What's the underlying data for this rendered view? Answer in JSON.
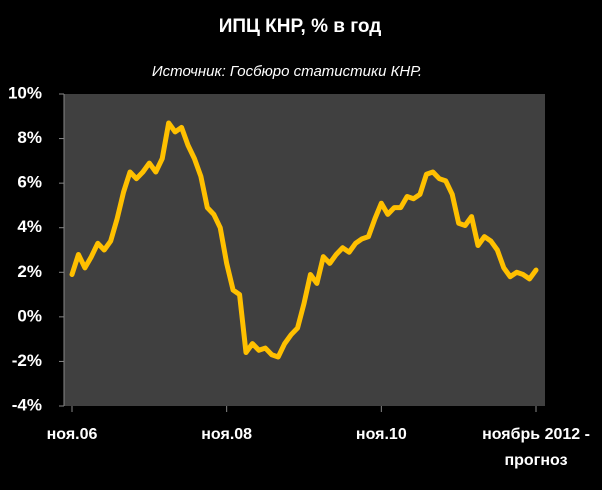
{
  "chart_data": {
    "type": "line",
    "title": "ИПЦ КНР, % в год",
    "subtitle": "Источник: Госбюро статистики КНР.",
    "categories": [
      "ноя.06",
      null,
      null,
      null,
      null,
      null,
      null,
      null,
      null,
      null,
      null,
      null,
      null,
      null,
      null,
      null,
      null,
      null,
      null,
      null,
      null,
      null,
      null,
      null,
      "ноя.08",
      null,
      null,
      null,
      null,
      null,
      null,
      null,
      null,
      null,
      null,
      null,
      null,
      null,
      null,
      null,
      null,
      null,
      null,
      null,
      null,
      null,
      null,
      null,
      "ноя.10",
      null,
      null,
      null,
      null,
      null,
      null,
      null,
      null,
      null,
      null,
      null,
      null,
      null,
      null,
      null,
      null,
      null,
      null,
      null,
      null,
      null,
      null,
      null,
      "ноябрь 2012 - прогноз"
    ],
    "values": [
      1.9,
      2.8,
      2.2,
      2.7,
      3.3,
      3.0,
      3.4,
      4.4,
      5.6,
      6.5,
      6.2,
      6.5,
      6.9,
      6.5,
      7.1,
      8.7,
      8.3,
      8.5,
      7.7,
      7.1,
      6.3,
      4.9,
      4.6,
      4.0,
      2.4,
      1.2,
      1.0,
      -1.6,
      -1.2,
      -1.5,
      -1.4,
      -1.7,
      -1.8,
      -1.2,
      -0.8,
      -0.5,
      0.6,
      1.9,
      1.5,
      2.7,
      2.4,
      2.8,
      3.1,
      2.9,
      3.3,
      3.5,
      3.6,
      4.4,
      5.1,
      4.6,
      4.9,
      4.9,
      5.4,
      5.3,
      5.5,
      6.4,
      6.5,
      6.2,
      6.1,
      5.5,
      4.2,
      4.1,
      4.5,
      3.2,
      3.6,
      3.4,
      3.0,
      2.2,
      1.8,
      2.0,
      1.9,
      1.7,
      2.1
    ],
    "color": "#ffc000",
    "ylim": [
      -4,
      10
    ],
    "yticks": [
      {
        "value": -4,
        "label": "-4%"
      },
      {
        "value": -2,
        "label": "-2%"
      },
      {
        "value": 0,
        "label": "0%"
      },
      {
        "value": 2,
        "label": "2%"
      },
      {
        "value": 4,
        "label": "4%"
      },
      {
        "value": 6,
        "label": "6%"
      },
      {
        "value": 8,
        "label": "8%"
      },
      {
        "value": 10,
        "label": "10%"
      }
    ],
    "grid": false
  }
}
